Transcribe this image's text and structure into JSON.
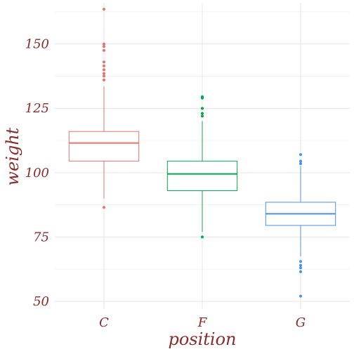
{
  "chart_data": {
    "type": "box",
    "title": "",
    "xlabel": "position",
    "ylabel": "weight",
    "ylim": [
      47,
      166
    ],
    "yticks": [
      50,
      75,
      100,
      125,
      150
    ],
    "grid": true,
    "categories": [
      "C",
      "F",
      "G"
    ],
    "series": [
      {
        "category": "C",
        "color": "#e8716b",
        "whisker_low": 90,
        "q1": 104.5,
        "median": 111.5,
        "q3": 116,
        "whisker_high": 133.5,
        "outliers": [
          86.5,
          136,
          137.5,
          138.5,
          140,
          141.5,
          143,
          147.5,
          149,
          150,
          163.5
        ]
      },
      {
        "category": "F",
        "color": "#00a84f",
        "whisker_low": 77,
        "q1": 93,
        "median": 99.5,
        "q3": 104.5,
        "whisker_high": 120,
        "outliers": [
          75,
          122,
          123,
          125,
          129,
          129.5
        ]
      },
      {
        "category": "G",
        "color": "#4a8ff0",
        "whisker_low": 67.5,
        "q1": 79.5,
        "median": 84,
        "q3": 88.5,
        "whisker_high": 102.5,
        "outliers": [
          52,
          61.5,
          63,
          64,
          65.5,
          103.5,
          104.5,
          107
        ]
      }
    ]
  }
}
